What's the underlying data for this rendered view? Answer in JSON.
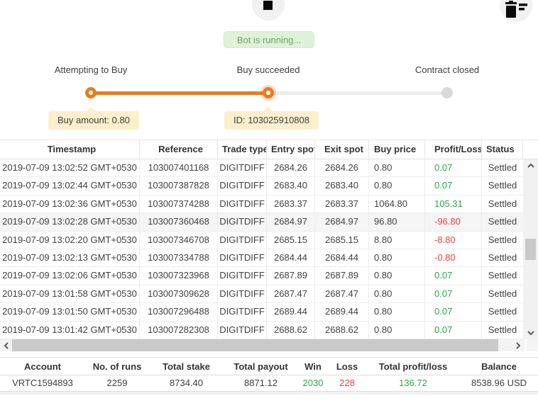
{
  "colors": {
    "accent_orange": "#e87c1e",
    "positive_green": "#28a745",
    "negative_red": "#f23c3c",
    "badge_bg": "#def2d8",
    "badge_text": "#72a069",
    "tooltip_bg": "#fbf0cb"
  },
  "toolbar": {
    "stop_button": "stop",
    "clear_button": "clear-log"
  },
  "status_banner": {
    "text": "Bot is running..."
  },
  "stepper": {
    "steps": [
      {
        "label": "Attempting to Buy",
        "state": "done"
      },
      {
        "label": "Buy succeeded",
        "state": "active"
      },
      {
        "label": "Contract closed",
        "state": "pending"
      }
    ],
    "tooltips": [
      {
        "text": "Buy amount: 0.80"
      },
      {
        "text": "ID: 103025910808"
      }
    ]
  },
  "trades": {
    "headers": [
      "Timestamp",
      "Reference",
      "Trade type",
      "Entry spot",
      "Exit spot",
      "Buy price",
      "Profit/Loss",
      "Status"
    ],
    "rows": [
      {
        "timestamp": "2019-07-09 13:02:52 GMT+0530",
        "reference": "103007401168",
        "trade_type": "DIGITDIFF",
        "entry_spot": "2684.26",
        "exit_spot": "2684.26",
        "buy_price": "0.80",
        "profit_loss": "0.07",
        "status": "Settled",
        "highlighted": false
      },
      {
        "timestamp": "2019-07-09 13:02:44 GMT+0530",
        "reference": "103007387828",
        "trade_type": "DIGITDIFF",
        "entry_spot": "2683.40",
        "exit_spot": "2683.40",
        "buy_price": "0.80",
        "profit_loss": "0.07",
        "status": "Settled",
        "highlighted": false
      },
      {
        "timestamp": "2019-07-09 13:02:36 GMT+0530",
        "reference": "103007374288",
        "trade_type": "DIGITDIFF",
        "entry_spot": "2683.37",
        "exit_spot": "2683.37",
        "buy_price": "1064.80",
        "profit_loss": "105.31",
        "status": "Settled",
        "highlighted": false
      },
      {
        "timestamp": "2019-07-09 13:02:28 GMT+0530",
        "reference": "103007360468",
        "trade_type": "DIGITDIFF",
        "entry_spot": "2684.97",
        "exit_spot": "2684.97",
        "buy_price": "96.80",
        "profit_loss": "-96.80",
        "status": "Settled",
        "highlighted": true
      },
      {
        "timestamp": "2019-07-09 13:02:20 GMT+0530",
        "reference": "103007346708",
        "trade_type": "DIGITDIFF",
        "entry_spot": "2685.15",
        "exit_spot": "2685.15",
        "buy_price": "8.80",
        "profit_loss": "-8.80",
        "status": "Settled",
        "highlighted": false
      },
      {
        "timestamp": "2019-07-09 13:02:13 GMT+0530",
        "reference": "103007334788",
        "trade_type": "DIGITDIFF",
        "entry_spot": "2684.44",
        "exit_spot": "2684.44",
        "buy_price": "0.80",
        "profit_loss": "-0.80",
        "status": "Settled",
        "highlighted": false
      },
      {
        "timestamp": "2019-07-09 13:02:06 GMT+0530",
        "reference": "103007323968",
        "trade_type": "DIGITDIFF",
        "entry_spot": "2687.89",
        "exit_spot": "2687.89",
        "buy_price": "0.80",
        "profit_loss": "0.07",
        "status": "Settled",
        "highlighted": false
      },
      {
        "timestamp": "2019-07-09 13:01:58 GMT+0530",
        "reference": "103007309628",
        "trade_type": "DIGITDIFF",
        "entry_spot": "2687.47",
        "exit_spot": "2687.47",
        "buy_price": "0.80",
        "profit_loss": "0.07",
        "status": "Settled",
        "highlighted": false
      },
      {
        "timestamp": "2019-07-09 13:01:50 GMT+0530",
        "reference": "103007296488",
        "trade_type": "DIGITDIFF",
        "entry_spot": "2689.44",
        "exit_spot": "2689.44",
        "buy_price": "0.80",
        "profit_loss": "0.07",
        "status": "Settled",
        "highlighted": false
      },
      {
        "timestamp": "2019-07-09 13:01:42 GMT+0530",
        "reference": "103007282308",
        "trade_type": "DIGITDIFF",
        "entry_spot": "2688.62",
        "exit_spot": "2688.62",
        "buy_price": "0.80",
        "profit_loss": "0.07",
        "status": "Settled",
        "highlighted": false
      }
    ]
  },
  "summary": {
    "headers": [
      "Account",
      "No. of runs",
      "Total stake",
      "Total payout",
      "Win",
      "Loss",
      "Total profit/loss",
      "Balance"
    ],
    "row": {
      "account": "VRTC1594893",
      "runs": "2259",
      "total_stake": "8734.40",
      "total_payout": "8871.12",
      "win": "2030",
      "loss": "228",
      "total_profit_loss": "136.72",
      "balance": "8538.96 USD"
    }
  }
}
